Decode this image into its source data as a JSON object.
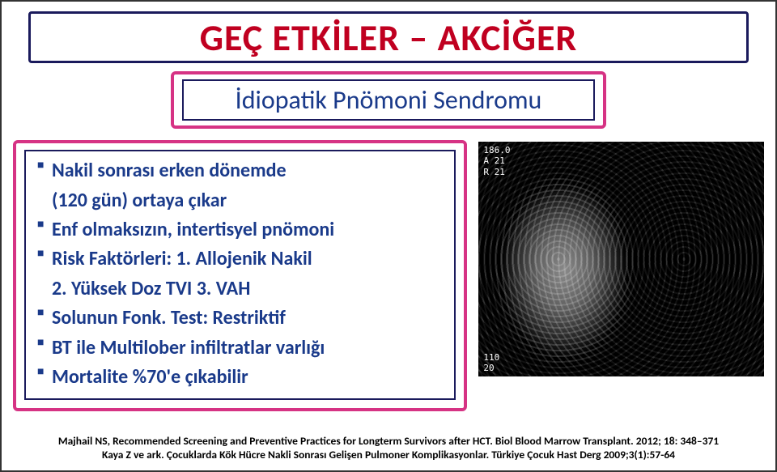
{
  "title": "GEÇ ETKİLER – AKCİĞER",
  "subtitle": "İdiopatik Pnömoni Sendromu",
  "bullets": [
    {
      "text": "Nakil sonrası erken dönemde",
      "blt": true
    },
    {
      "text": "(120 gün) ortaya çıkar",
      "blt": false
    },
    {
      "text": "Enf olmaksızın, intertisyel pnömoni",
      "blt": true
    },
    {
      "text": "Risk Faktörleri: 1. Allojenik Nakil",
      "blt": true
    },
    {
      "text": "2. Yüksek Doz TVI   3. VAH",
      "blt": false
    },
    {
      "text": "Solunun Fonk. Test: Restriktif",
      "blt": true
    },
    {
      "text": "BT ile Multilober infiltratlar varlığı",
      "blt": true
    },
    {
      "text": "Mortalite %70'e çıkabilir",
      "blt": true
    }
  ],
  "ct_overlay": {
    "top_left": "186.0\nA 21\nR 21",
    "bottom_left": "110\n20"
  },
  "refs": {
    "line1": "Majhail NS, Recommended Screening and Preventive Practices for Longterm Survivors after HCT. Biol Blood Marrow Transplant. 2012; 18: 348–371",
    "line2": "Kaya Z ve ark. Çocuklarda Kök Hücre Nakli Sonrası Gelişen Pulmoner Komplikasyonlar. Türkiye Çocuk Hast Derg 2009;3(1):57-64"
  },
  "colors": {
    "title_color": "#c00020",
    "accent_border": "#d63384",
    "inner_border": "#1a1a5c",
    "body_text": "#1a3a8a"
  }
}
